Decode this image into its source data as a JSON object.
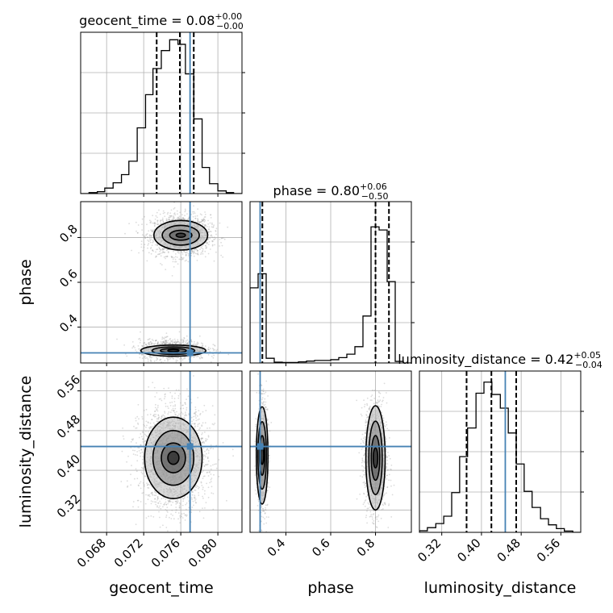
{
  "chart_data": {
    "type": "corner",
    "parameters": [
      "geocent_time",
      "phase",
      "luminosity_distance"
    ],
    "titles": [
      {
        "param": "geocent_time",
        "text": "geocent_time = 0.08",
        "plus": "+0.00",
        "minus": "−0.00"
      },
      {
        "param": "phase",
        "text": "phase = 0.80",
        "plus": "+0.06",
        "minus": "−0.50"
      },
      {
        "param": "luminosity_distance",
        "text": "luminosity_distance = 0.42",
        "plus": "+0.05",
        "minus": "−0.04"
      }
    ],
    "axis_labels": {
      "x": [
        "geocent_time",
        "phase",
        "luminosity_distance"
      ],
      "y": [
        "phase",
        "luminosity_distance"
      ]
    },
    "ranges": {
      "geocent_time": [
        0.0652,
        0.0826
      ],
      "phase": [
        0.24,
        0.96
      ],
      "luminosity_distance": [
        0.275,
        0.6
      ]
    },
    "ticks": {
      "geocent_time": [
        "0.068",
        "0.072",
        "0.076",
        "0.080"
      ],
      "phase_x": [
        "0.4",
        "0.6",
        "0.8"
      ],
      "phase_y": [
        "0.4",
        "0.6",
        "0.8"
      ],
      "luminosity_distance_x": [
        "0.32",
        "0.40",
        "0.48",
        "0.56"
      ],
      "luminosity_distance_y": [
        "0.32",
        "0.40",
        "0.48",
        "0.56"
      ]
    },
    "truths": {
      "geocent_time": 0.077,
      "phase": 0.285,
      "luminosity_distance": 0.448
    },
    "quantiles": {
      "geocent_time": [
        0.0734,
        0.0759,
        0.0774
      ],
      "phase": [
        0.295,
        0.8,
        0.86
      ],
      "luminosity_distance": [
        0.37,
        0.42,
        0.47
      ]
    },
    "histograms": {
      "geocent_time": {
        "edges": [
          0.0652,
          0.0661,
          0.067,
          0.0678,
          0.0687,
          0.0696,
          0.0704,
          0.0713,
          0.0722,
          0.073,
          0.0739,
          0.0748,
          0.0757,
          0.0765,
          0.0774,
          0.0783,
          0.0791,
          0.08,
          0.0809,
          0.0817,
          0.0826
        ],
        "counts": [
          0.0,
          0.006,
          0.012,
          0.035,
          0.069,
          0.121,
          0.207,
          0.42,
          0.632,
          0.799,
          0.914,
          0.983,
          0.954,
          0.765,
          0.477,
          0.167,
          0.063,
          0.017,
          0.006,
          0.0
        ],
        "ymax": 1.0
      },
      "phase": {
        "edges": [
          0.24,
          0.276,
          0.312,
          0.348,
          0.384,
          0.42,
          0.456,
          0.492,
          0.528,
          0.564,
          0.6,
          0.636,
          0.672,
          0.708,
          0.744,
          0.78,
          0.816,
          0.852,
          0.888,
          0.924,
          0.96
        ],
        "counts": [
          0.48,
          0.57,
          0.03,
          0.005,
          0.003,
          0.003,
          0.007,
          0.012,
          0.016,
          0.016,
          0.021,
          0.034,
          0.056,
          0.104,
          0.3,
          0.87,
          0.85,
          0.52,
          0.01,
          0.0
        ],
        "ymax": 1.0
      },
      "luminosity_distance": {
        "edges": [
          0.275,
          0.291,
          0.308,
          0.324,
          0.34,
          0.356,
          0.372,
          0.389,
          0.405,
          0.421,
          0.438,
          0.454,
          0.47,
          0.486,
          0.502,
          0.519,
          0.535,
          0.551,
          0.567,
          0.584,
          0.6
        ],
        "counts": [
          0.01,
          0.03,
          0.056,
          0.103,
          0.254,
          0.484,
          0.667,
          0.889,
          0.96,
          0.881,
          0.794,
          0.635,
          0.437,
          0.262,
          0.159,
          0.087,
          0.048,
          0.024,
          0.008,
          0.0
        ],
        "ymax": 1.0
      }
    },
    "scatter_clusters": {
      "geocent_time_phase": [
        {
          "cx": 0.076,
          "cy": 0.81,
          "sx": 0.0016,
          "sy": 0.045,
          "n": 1800
        },
        {
          "cx": 0.0752,
          "cy": 0.3,
          "sx": 0.0018,
          "sy": 0.022,
          "n": 1100
        }
      ],
      "geocent_time_luminosity_distance": [
        {
          "cx": 0.0752,
          "cy": 0.425,
          "sx": 0.0018,
          "sy": 0.05,
          "n": 2400
        }
      ],
      "phase_luminosity_distance": [
        {
          "cx": 0.295,
          "cy": 0.43,
          "sx": 0.012,
          "sy": 0.055,
          "n": 1000
        },
        {
          "cx": 0.8,
          "cy": 0.425,
          "sx": 0.025,
          "sy": 0.055,
          "n": 1400
        }
      ]
    },
    "contour_ellipses": {
      "geocent_time_phase": [
        {
          "cx": 0.076,
          "cy": 0.81,
          "levels": [
            [
              0.0005,
              0.009
            ],
            [
              0.0012,
              0.022
            ],
            [
              0.002,
              0.044
            ],
            [
              0.0029,
              0.066
            ]
          ]
        },
        {
          "cx": 0.0752,
          "cy": 0.295,
          "levels": [
            [
              0.0006,
              0.005
            ],
            [
              0.0014,
              0.01
            ],
            [
              0.0023,
              0.017
            ],
            [
              0.0035,
              0.025
            ]
          ]
        }
      ],
      "geocent_time_luminosity_distance": [
        {
          "cx": 0.0752,
          "cy": 0.425,
          "levels": [
            [
              0.0006,
              0.013
            ],
            [
              0.0013,
              0.03
            ],
            [
              0.0022,
              0.055
            ],
            [
              0.0031,
              0.082
            ]
          ]
        }
      ],
      "phase_luminosity_distance": [
        {
          "cx": 0.294,
          "cy": 0.43,
          "levels": [
            [
              0.007,
              0.018
            ],
            [
              0.012,
              0.04
            ],
            [
              0.019,
              0.068
            ],
            [
              0.026,
              0.098
            ]
          ]
        },
        {
          "cx": 0.8,
          "cy": 0.425,
          "levels": [
            [
              0.01,
              0.02
            ],
            [
              0.019,
              0.045
            ],
            [
              0.03,
              0.074
            ],
            [
              0.043,
              0.105
            ]
          ]
        }
      ]
    },
    "colors": {
      "truth": "#4682b4",
      "hist": "#000000",
      "grid": "#b0b0b0",
      "scatter": "#9a9a9a"
    }
  }
}
